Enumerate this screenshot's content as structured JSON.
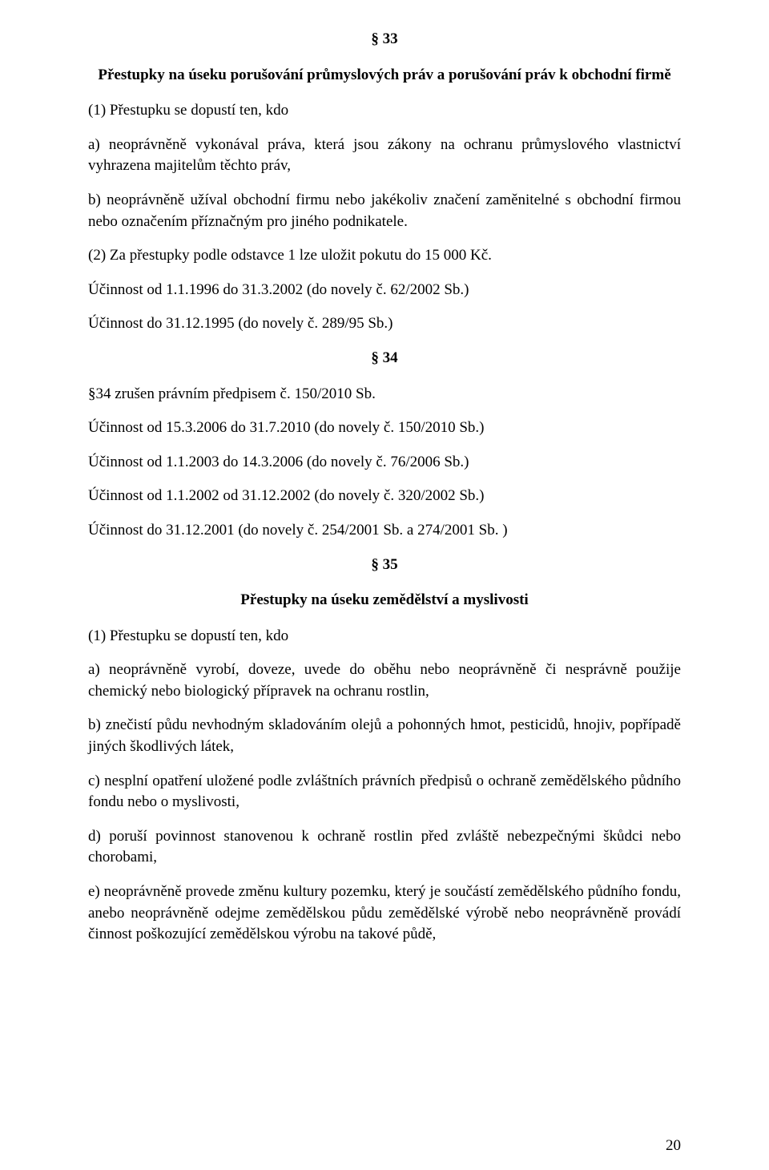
{
  "s33": {
    "num": "§ 33",
    "title": "Přestupky na úseku porušování průmyslových práv a porušování práv k obchodní firmě",
    "p1_intro": "(1) Přestupku se dopustí ten, kdo",
    "p1_a": "a) neoprávněně vykonával práva, která jsou zákony na ochranu průmyslového vlastnictví vyhrazena majitelům těchto práv,",
    "p1_b": "b) neoprávněně užíval obchodní firmu nebo jakékoliv značení zaměnitelné s obchodní firmou nebo označením příznačným pro jiného podnikatele.",
    "p2": "(2) Za přestupky podle odstavce 1 lze uložit pokutu do 15 000 Kč.",
    "eff1": "Účinnost od 1.1.1996 do 31.3.2002 (do novely č. 62/2002 Sb.)",
    "eff2": "Účinnost do 31.12.1995 (do novely č. 289/95 Sb.)"
  },
  "s34": {
    "num": "§ 34",
    "canceled": "§34 zrušen právním předpisem č. 150/2010 Sb.",
    "eff1": "Účinnost od 15.3.2006 do 31.7.2010 (do novely č. 150/2010 Sb.)",
    "eff2": "Účinnost od 1.1.2003 do 14.3.2006 (do novely č. 76/2006 Sb.)",
    "eff3": "Účinnost od 1.1.2002 od 31.12.2002 (do novely č. 320/2002 Sb.)",
    "eff4": "Účinnost do 31.12.2001 (do novely č. 254/2001 Sb. a 274/2001 Sb. )"
  },
  "s35": {
    "num": "§ 35",
    "title": "Přestupky na úseku zemědělství a myslivosti",
    "p1_intro": "(1) Přestupku se dopustí ten, kdo",
    "p1_a": "a) neoprávněně vyrobí, doveze, uvede do oběhu nebo neoprávněně či nesprávně použije chemický nebo biologický přípravek na ochranu rostlin,",
    "p1_b": "b) znečistí půdu nevhodným skladováním olejů a pohonných hmot, pesticidů, hnojiv, popřípadě jiných škodlivých látek,",
    "p1_c": "c) nesplní opatření uložené podle zvláštních právních předpisů o ochraně zemědělského půdního fondu nebo o myslivosti,",
    "p1_d": "d) poruší povinnost stanovenou k ochraně rostlin před zvláště nebezpečnými škůdci nebo chorobami,",
    "p1_e": "e) neoprávněně provede změnu kultury pozemku, který je součástí zemědělského půdního fondu, anebo neoprávněně odejme zemědělskou půdu zemědělské výrobě nebo neoprávněně provádí činnost poškozující zemědělskou výrobu na takové půdě,"
  },
  "pagenum": "20"
}
